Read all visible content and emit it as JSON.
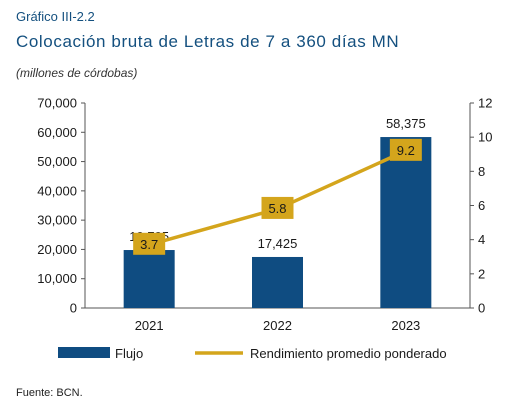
{
  "header": {
    "kicker": "Gráfico III-2.2",
    "title": "Colocación bruta de Letras de 7 a 360 días MN",
    "subtitle": "(millones de córdobas)"
  },
  "footer": {
    "source": "Fuente: BCN."
  },
  "colors": {
    "bar": "#0f4c81",
    "line": "#d4a51c",
    "label_box": "#d4a51c",
    "title": "#14507f"
  },
  "chart_data": {
    "type": "bar",
    "categories": [
      "2021",
      "2022",
      "2023"
    ],
    "series": [
      {
        "name": "Flujo",
        "type": "bar",
        "axis": "left",
        "values": [
          19795,
          17425,
          58375
        ],
        "labels": [
          "19,795",
          "17,425",
          "58,375"
        ]
      },
      {
        "name": "Rendimiento promedio ponderado",
        "type": "line",
        "axis": "right",
        "values": [
          3.7,
          5.8,
          9.2
        ],
        "labels": [
          "3.7",
          "5.8",
          "9.2"
        ]
      }
    ],
    "y_left": {
      "min": 0,
      "max": 70000,
      "ticks": [
        "0",
        "10,000",
        "20,000",
        "30,000",
        "40,000",
        "50,000",
        "60,000",
        "70,000"
      ]
    },
    "y_right": {
      "min": 0,
      "max": 12,
      "ticks": [
        "0",
        "2",
        "4",
        "6",
        "8",
        "10",
        "12"
      ]
    },
    "grid": false,
    "legend_position": "bottom"
  }
}
